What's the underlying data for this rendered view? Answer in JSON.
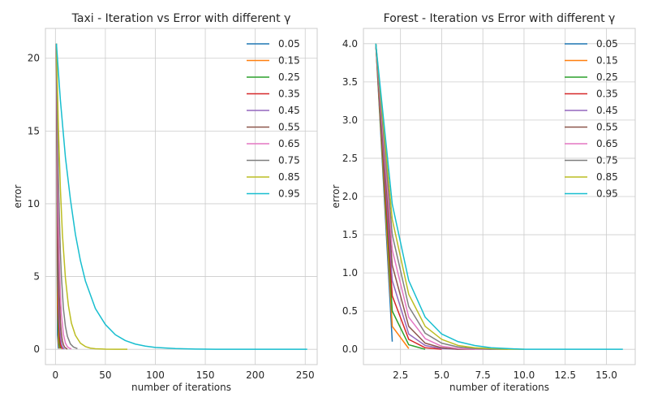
{
  "chart_data": [
    {
      "type": "line",
      "title": "Taxi - Iteration vs Error with different γ",
      "xlabel": "number of iterations",
      "ylabel": "error",
      "xlim": [
        -10,
        262
      ],
      "ylim": [
        -1.05,
        22.05
      ],
      "xticks": [
        0,
        50,
        100,
        150,
        200,
        250
      ],
      "yticks": [
        0,
        5,
        10,
        15,
        20
      ],
      "grid": true,
      "legend": "top-right",
      "series": [
        {
          "name": "0.05",
          "color": "#1f77b4",
          "x": [
            1,
            2,
            3
          ],
          "y": [
            21,
            1.0,
            0.05
          ]
        },
        {
          "name": "0.15",
          "color": "#ff7f0e",
          "x": [
            1,
            2,
            3,
            4
          ],
          "y": [
            21,
            3.2,
            0.48,
            0.05
          ]
        },
        {
          "name": "0.25",
          "color": "#2ca02c",
          "x": [
            1,
            2,
            3,
            4,
            5
          ],
          "y": [
            21,
            5.3,
            1.3,
            0.33,
            0.05
          ]
        },
        {
          "name": "0.35",
          "color": "#d62728",
          "x": [
            1,
            2,
            3,
            4,
            5,
            6,
            7
          ],
          "y": [
            21,
            7.4,
            2.6,
            0.9,
            0.32,
            0.11,
            0.02
          ]
        },
        {
          "name": "0.45",
          "color": "#9467bd",
          "x": [
            1,
            2,
            3,
            4,
            5,
            6,
            7,
            8,
            9
          ],
          "y": [
            21,
            9.5,
            4.3,
            1.9,
            0.86,
            0.39,
            0.17,
            0.08,
            0.02
          ]
        },
        {
          "name": "0.55",
          "color": "#8c564b",
          "x": [
            1,
            2,
            3,
            4,
            5,
            6,
            7,
            8,
            9,
            10,
            11,
            12
          ],
          "y": [
            21,
            11.5,
            6.4,
            3.5,
            1.9,
            1.05,
            0.58,
            0.32,
            0.17,
            0.1,
            0.05,
            0.02
          ]
        },
        {
          "name": "0.65",
          "color": "#e377c2",
          "x": [
            1,
            2,
            3,
            4,
            5,
            6,
            8,
            10,
            12,
            14,
            16
          ],
          "y": [
            21,
            13.6,
            8.9,
            5.8,
            3.7,
            2.4,
            1.03,
            0.43,
            0.18,
            0.08,
            0.03
          ]
        },
        {
          "name": "0.75",
          "color": "#7f7f7f",
          "x": [
            1,
            2,
            3,
            4,
            5,
            6,
            8,
            10,
            12,
            15,
            18,
            22
          ],
          "y": [
            21,
            15.7,
            11.8,
            8.9,
            6.6,
            5.0,
            2.8,
            1.58,
            0.89,
            0.37,
            0.16,
            0.05
          ]
        },
        {
          "name": "0.85",
          "color": "#bcbd22",
          "x": [
            1,
            3,
            5,
            7,
            10,
            13,
            16,
            20,
            25,
            30,
            35,
            40,
            50,
            60,
            72
          ],
          "y": [
            21,
            15.2,
            11.0,
            7.9,
            4.9,
            3.0,
            1.8,
            0.96,
            0.42,
            0.19,
            0.08,
            0.04,
            0.01,
            0.0,
            0.0
          ]
        },
        {
          "name": "0.95",
          "color": "#17becf",
          "x": [
            1,
            5,
            10,
            15,
            20,
            25,
            30,
            40,
            50,
            60,
            70,
            80,
            90,
            100,
            120,
            140,
            160,
            180,
            200,
            230,
            252
          ],
          "y": [
            21,
            17.1,
            13.2,
            10.3,
            7.9,
            6.1,
            4.7,
            2.8,
            1.7,
            1.0,
            0.6,
            0.36,
            0.22,
            0.13,
            0.05,
            0.02,
            0.0,
            0.0,
            0.0,
            0.0,
            0.0
          ]
        }
      ]
    },
    {
      "type": "line",
      "title": "Forest - Iteration vs Error with different γ",
      "xlabel": "number of iterations",
      "ylabel": "error",
      "xlim": [
        0.25,
        16.75
      ],
      "ylim": [
        -0.2,
        4.2
      ],
      "xticks": [
        2.5,
        5.0,
        7.5,
        10.0,
        12.5,
        15.0
      ],
      "yticks": [
        0.0,
        0.5,
        1.0,
        1.5,
        2.0,
        2.5,
        3.0,
        3.5,
        4.0
      ],
      "grid": true,
      "legend": "top-right",
      "series": [
        {
          "name": "0.05",
          "color": "#1f77b4",
          "x": [
            1,
            2
          ],
          "y": [
            4.0,
            0.1
          ]
        },
        {
          "name": "0.15",
          "color": "#ff7f0e",
          "x": [
            1,
            2,
            3
          ],
          "y": [
            4.0,
            0.3,
            0.01
          ]
        },
        {
          "name": "0.25",
          "color": "#2ca02c",
          "x": [
            1,
            2,
            3,
            4
          ],
          "y": [
            4.0,
            0.5,
            0.06,
            0.0
          ]
        },
        {
          "name": "0.35",
          "color": "#d62728",
          "x": [
            1,
            2,
            3,
            4,
            5
          ],
          "y": [
            4.0,
            0.7,
            0.13,
            0.02,
            0.0
          ]
        },
        {
          "name": "0.45",
          "color": "#9467bd",
          "x": [
            1,
            2,
            3,
            4,
            5,
            6
          ],
          "y": [
            4.0,
            0.9,
            0.2,
            0.05,
            0.01,
            0.0
          ]
        },
        {
          "name": "0.55",
          "color": "#8c564b",
          "x": [
            1,
            2,
            3,
            4,
            5,
            6,
            7
          ],
          "y": [
            4.0,
            1.1,
            0.3,
            0.08,
            0.02,
            0.0,
            0.0
          ]
        },
        {
          "name": "0.65",
          "color": "#e377c2",
          "x": [
            1,
            2,
            3,
            4,
            5,
            6,
            7,
            8
          ],
          "y": [
            4.0,
            1.3,
            0.42,
            0.14,
            0.04,
            0.01,
            0.0,
            0.0
          ]
        },
        {
          "name": "0.75",
          "color": "#7f7f7f",
          "x": [
            1,
            2,
            3,
            4,
            5,
            6,
            7,
            8,
            9
          ],
          "y": [
            4.0,
            1.5,
            0.56,
            0.21,
            0.08,
            0.03,
            0.01,
            0.0,
            0.0
          ]
        },
        {
          "name": "0.85",
          "color": "#bcbd22",
          "x": [
            1,
            2,
            3,
            4,
            5,
            6,
            7,
            8,
            9,
            10
          ],
          "y": [
            4.0,
            1.7,
            0.72,
            0.3,
            0.13,
            0.05,
            0.02,
            0.01,
            0.0,
            0.0
          ]
        },
        {
          "name": "0.95",
          "color": "#17becf",
          "x": [
            1,
            2,
            3,
            4,
            5,
            6,
            7,
            8,
            9,
            10,
            11,
            12,
            14,
            16
          ],
          "y": [
            4.0,
            1.9,
            0.9,
            0.42,
            0.2,
            0.1,
            0.05,
            0.02,
            0.01,
            0.0,
            0.0,
            0.0,
            0.0,
            0.0
          ]
        }
      ]
    }
  ]
}
